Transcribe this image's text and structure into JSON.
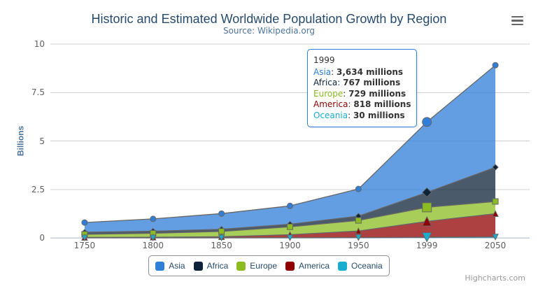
{
  "header": {
    "title": "Historic and Estimated Worldwide Population Growth by Region",
    "subtitle": "Source: Wikipedia.org"
  },
  "chart_data": {
    "type": "area",
    "stacking": "normal",
    "title": "Historic and Estimated Worldwide Population Growth by Region",
    "subtitle": "Source: Wikipedia.org",
    "categories": [
      "1750",
      "1800",
      "1850",
      "1900",
      "1950",
      "1999",
      "2050"
    ],
    "series": [
      {
        "name": "Asia",
        "color": "#2f7ed8",
        "marker": "circle",
        "values": [
          502,
          635,
          809,
          947,
          1402,
          3634,
          5268
        ]
      },
      {
        "name": "Africa",
        "color": "#0d233a",
        "marker": "diamond",
        "values": [
          106,
          107,
          111,
          133,
          221,
          767,
          1766
        ]
      },
      {
        "name": "Europe",
        "color": "#8bbc21",
        "marker": "square",
        "values": [
          163,
          203,
          276,
          408,
          547,
          729,
          628
        ]
      },
      {
        "name": "America",
        "color": "#910000",
        "marker": "triangle",
        "values": [
          18,
          31,
          54,
          156,
          339,
          818,
          1201
        ]
      },
      {
        "name": "Oceania",
        "color": "#1aadce",
        "marker": "triangle-down",
        "values": [
          2,
          2,
          2,
          6,
          13,
          30,
          46
        ]
      }
    ],
    "units": "millions",
    "xlabel": "",
    "ylabel": "Billions",
    "yticks": [
      "0",
      "2.5",
      "5",
      "7.5",
      "10"
    ],
    "ytick_values": [
      0,
      2.5,
      5,
      7.5,
      10
    ],
    "ylim": [
      0,
      10
    ],
    "grid": true,
    "legend_position": "bottom",
    "hovered_category": "1999",
    "line_color": "#666666",
    "fill_opacity": 0.75,
    "grid_line_color": "#d2d2d2",
    "axis_line_color": "#c0d0e0"
  },
  "tooltip": {
    "header": "1999",
    "rows": [
      {
        "name": "Asia",
        "color": "#2f7ed8",
        "value": "3,634",
        "suffix": " millions"
      },
      {
        "name": "Africa",
        "color": "#0d233a",
        "value": "767",
        "suffix": " millions"
      },
      {
        "name": "Europe",
        "color": "#8bbc21",
        "value": "729",
        "suffix": " millions"
      },
      {
        "name": "America",
        "color": "#910000",
        "value": "818",
        "suffix": " millions"
      },
      {
        "name": "Oceania",
        "color": "#1aadce",
        "value": "30",
        "suffix": " millions"
      }
    ]
  },
  "legend": {
    "items": [
      {
        "label": "Asia",
        "color": "#2f7ed8"
      },
      {
        "label": "Africa",
        "color": "#0d233a"
      },
      {
        "label": "Europe",
        "color": "#8bbc21"
      },
      {
        "label": "America",
        "color": "#910000"
      },
      {
        "label": "Oceania",
        "color": "#1aadce"
      }
    ]
  },
  "credits": {
    "text": "Highcharts.com"
  }
}
